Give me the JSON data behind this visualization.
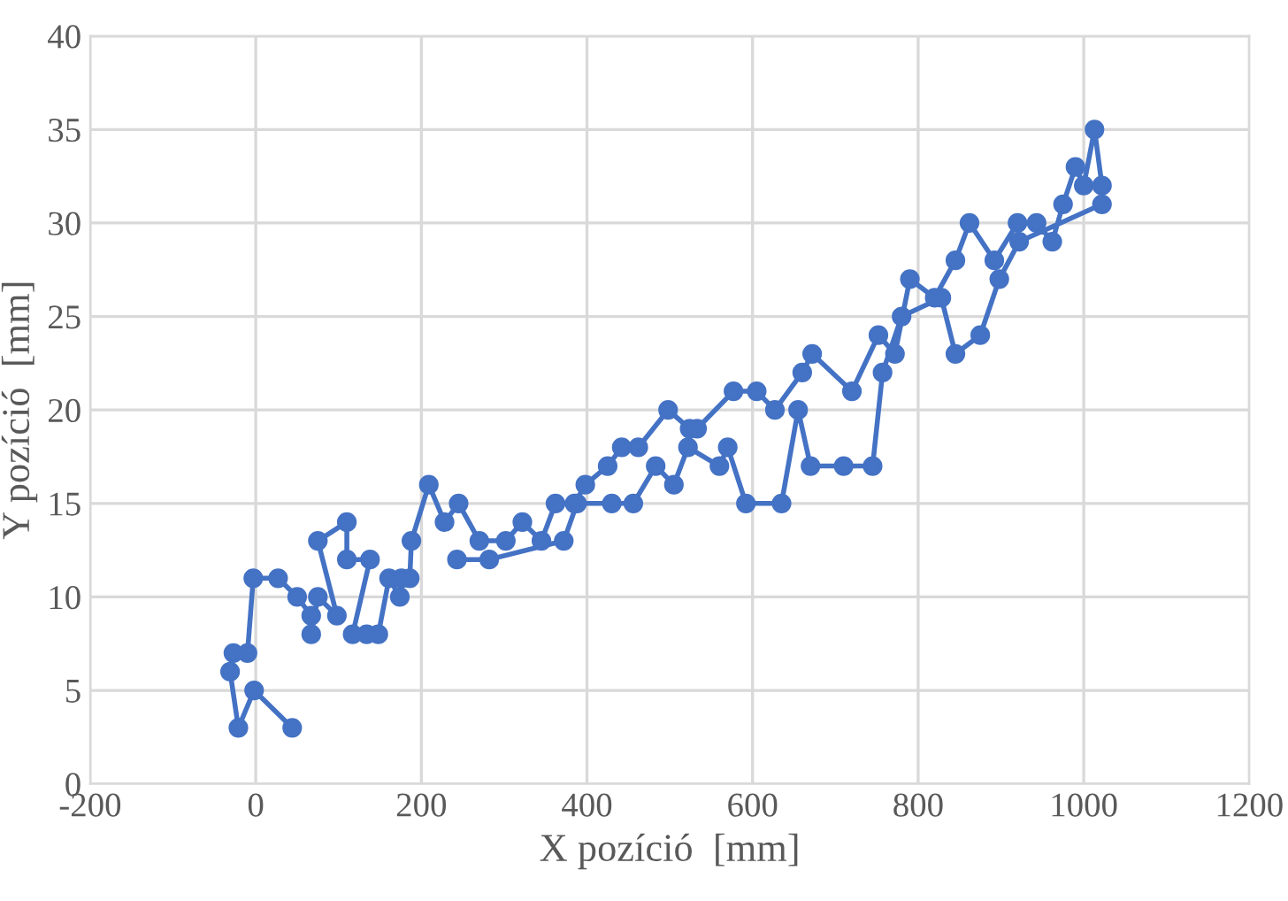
{
  "chart_data": {
    "type": "line",
    "xlabel": "X pozíció  [mm]",
    "ylabel": "Y pozíció  [mm]",
    "series": [
      {
        "color": "#4472c4",
        "x": [
          44,
          -2,
          -21,
          -31,
          -27,
          -10,
          -3,
          27,
          50,
          67,
          67,
          75,
          98,
          75,
          110,
          110,
          138,
          117,
          134,
          148,
          161,
          174,
          176,
          186,
          188,
          209,
          228,
          245,
          270,
          302,
          322,
          345,
          362,
          385,
          398,
          425,
          442,
          462,
          498,
          524,
          533,
          577,
          605,
          627,
          660,
          672,
          720,
          752,
          772,
          790,
          820,
          845,
          862,
          892,
          920,
          943,
          962,
          975,
          990,
          1000,
          1013,
          1022,
          1022,
          922,
          898,
          875,
          845,
          828,
          780,
          757,
          745,
          710,
          670,
          655,
          635,
          592,
          570,
          560,
          522,
          505,
          483,
          456,
          430,
          388,
          372,
          282,
          243
        ],
        "values": [
          3,
          5,
          3,
          6,
          7,
          7,
          11,
          11,
          10,
          9,
          8,
          10,
          9,
          13,
          14,
          12,
          12,
          8,
          8,
          8,
          11,
          10,
          11,
          11,
          13,
          16,
          14,
          15,
          13,
          13,
          14,
          13,
          15,
          15,
          16,
          17,
          18,
          18,
          20,
          19,
          19,
          21,
          21,
          20,
          22,
          23,
          21,
          24,
          23,
          27,
          26,
          28,
          30,
          28,
          30,
          30,
          29,
          31,
          33,
          32,
          35,
          32,
          31,
          29,
          27,
          24,
          23,
          26,
          25,
          22,
          17,
          17,
          17,
          20,
          15,
          15,
          18,
          17,
          18,
          16,
          17,
          15,
          15,
          15,
          13,
          12,
          12
        ]
      }
    ],
    "xlim": [
      -200,
      1200
    ],
    "xticks": [
      -200,
      0,
      200,
      400,
      600,
      800,
      1000,
      1200
    ],
    "ylim": [
      0,
      40
    ],
    "yticks": [
      0,
      5,
      10,
      15,
      20,
      25,
      30,
      35,
      40
    ],
    "grid": true,
    "marker": "circle",
    "line_style": "solid"
  }
}
